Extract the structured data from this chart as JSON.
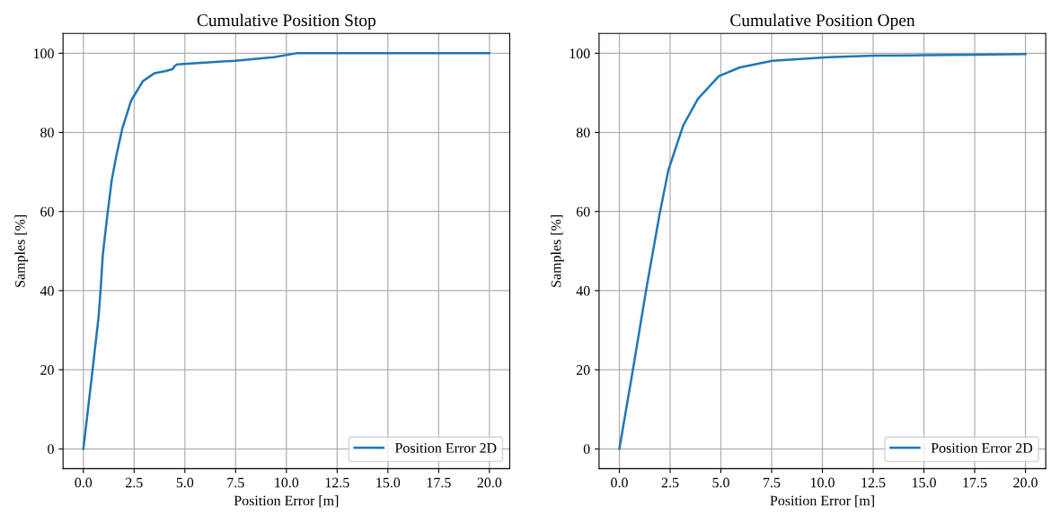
{
  "chart_data": [
    {
      "type": "line",
      "title": "Cumulative Position Stop",
      "xlabel": "Position Error [m]",
      "ylabel": "Samples [%]",
      "xlim": [
        -1,
        21
      ],
      "xticks": [
        {
          "value": 0,
          "label": "0.0"
        },
        {
          "value": 2.5,
          "label": "2.5"
        },
        {
          "value": 5,
          "label": "5.0"
        },
        {
          "value": 7.5,
          "label": "7.5"
        },
        {
          "value": 10,
          "label": "10.0"
        },
        {
          "value": 12.5,
          "label": "12.5"
        },
        {
          "value": 15,
          "label": "15.0"
        },
        {
          "value": 17.5,
          "label": "17.5"
        },
        {
          "value": 20,
          "label": "20.0"
        }
      ],
      "ylim": [
        -5,
        105
      ],
      "yticks": [
        0,
        20,
        40,
        60,
        80,
        100
      ],
      "grid": true,
      "legend": "bottom right",
      "series": [
        {
          "name": "Position Error 2D",
          "color": "#1f77b4",
          "x": [
            0,
            0.45,
            0.75,
            0.85,
            0.96,
            1.18,
            1.4,
            1.62,
            1.92,
            2.35,
            2.94,
            3.52,
            4.04,
            4.4,
            4.5,
            4.62,
            7.47,
            9.37,
            10.5,
            20
          ],
          "values": [
            0,
            19.8,
            33.4,
            40.2,
            49.2,
            59,
            68,
            74,
            81,
            88,
            93,
            95,
            95.5,
            96,
            96.8,
            97.2,
            98.1,
            99,
            100,
            100
          ]
        }
      ]
    },
    {
      "type": "line",
      "title": "Cumulative Position Open",
      "xlabel": "Position Error [m]",
      "ylabel": "Samples [%]",
      "xlim": [
        -1,
        21
      ],
      "xticks": [
        {
          "value": 0,
          "label": "0.0"
        },
        {
          "value": 2.5,
          "label": "2.5"
        },
        {
          "value": 5,
          "label": "5.0"
        },
        {
          "value": 7.5,
          "label": "7.5"
        },
        {
          "value": 10,
          "label": "10.0"
        },
        {
          "value": 12.5,
          "label": "12.5"
        },
        {
          "value": 15,
          "label": "15.0"
        },
        {
          "value": 17.5,
          "label": "17.5"
        },
        {
          "value": 20,
          "label": "20.0"
        }
      ],
      "ylim": [
        -5,
        105
      ],
      "yticks": [
        0,
        20,
        40,
        60,
        80,
        100
      ],
      "grid": true,
      "legend": "bottom right",
      "series": [
        {
          "name": "Position Error 2D",
          "color": "#1f77b4",
          "x": [
            0,
            0.66,
            1.32,
            1.97,
            2.41,
            3.14,
            3.87,
            4.9,
            5.92,
            7.53,
            10.3,
            12.5,
            15,
            17.5,
            20
          ],
          "values": [
            0,
            19.8,
            40.2,
            59,
            70.4,
            81.7,
            88.5,
            94.2,
            96.4,
            98.1,
            99,
            99.4,
            99.5,
            99.6,
            99.8
          ]
        }
      ]
    }
  ]
}
